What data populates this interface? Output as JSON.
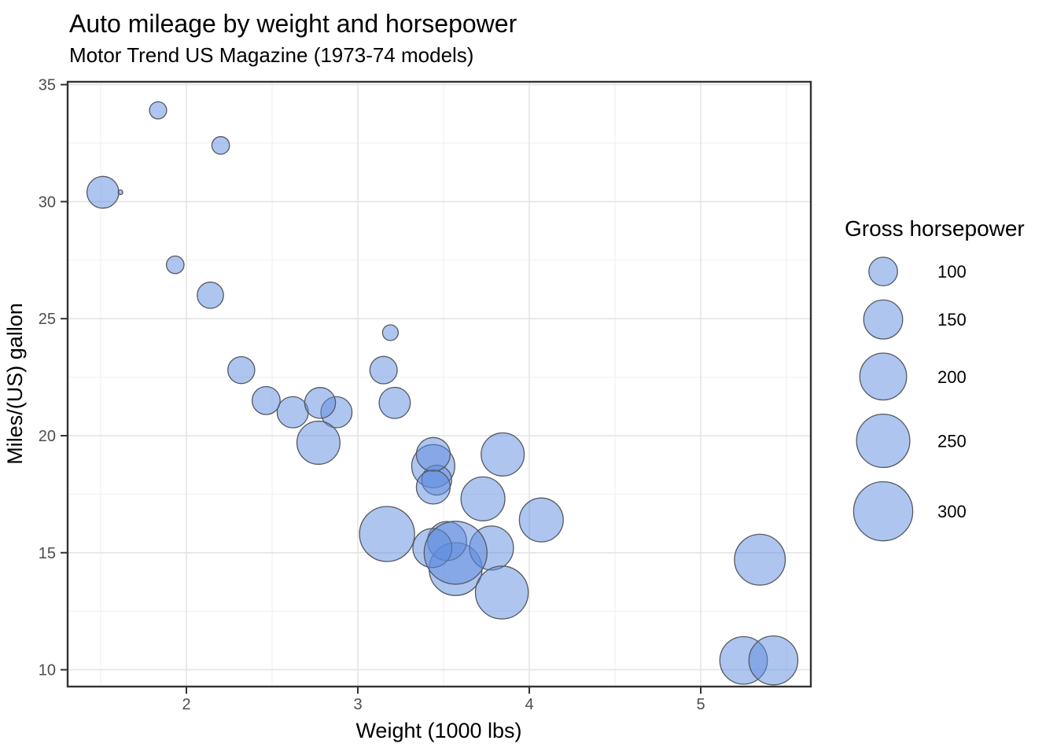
{
  "chart_data": {
    "type": "scatter",
    "title": "Auto mileage by weight and horsepower",
    "subtitle": "Motor Trend US Magazine (1973-74 models)",
    "xlabel": "Weight (1000 lbs)",
    "ylabel": "Miles/(US) gallon",
    "x_range": [
      1.3073,
      5.6422
    ],
    "y_range": [
      9.28,
      35.12
    ],
    "x_ticks_major": [
      2,
      3,
      4,
      5
    ],
    "x_ticks_minor": [
      1.5,
      2.5,
      3.5,
      4.5,
      5.5
    ],
    "y_ticks_major": [
      10,
      15,
      20,
      25,
      30,
      35
    ],
    "y_ticks_minor": [
      12.5,
      17.5,
      22.5,
      27.5,
      32.5
    ],
    "grid": "major+minor",
    "legend": {
      "title": "Gross horsepower",
      "entries": [
        100,
        150,
        200,
        250,
        300
      ],
      "position": "right"
    },
    "size_variable": "hp",
    "points": [
      {
        "wt": 2.62,
        "mpg": 21.0,
        "hp": 110
      },
      {
        "wt": 2.875,
        "mpg": 21.0,
        "hp": 110
      },
      {
        "wt": 2.32,
        "mpg": 22.8,
        "hp": 93
      },
      {
        "wt": 3.215,
        "mpg": 21.4,
        "hp": 110
      },
      {
        "wt": 3.44,
        "mpg": 18.7,
        "hp": 175
      },
      {
        "wt": 3.46,
        "mpg": 18.1,
        "hp": 105
      },
      {
        "wt": 3.57,
        "mpg": 14.3,
        "hp": 245
      },
      {
        "wt": 3.19,
        "mpg": 24.4,
        "hp": 62
      },
      {
        "wt": 3.15,
        "mpg": 22.8,
        "hp": 95
      },
      {
        "wt": 3.44,
        "mpg": 19.2,
        "hp": 123
      },
      {
        "wt": 3.44,
        "mpg": 17.8,
        "hp": 123
      },
      {
        "wt": 4.07,
        "mpg": 16.4,
        "hp": 180
      },
      {
        "wt": 3.73,
        "mpg": 17.3,
        "hp": 180
      },
      {
        "wt": 3.78,
        "mpg": 15.2,
        "hp": 180
      },
      {
        "wt": 5.25,
        "mpg": 10.4,
        "hp": 205
      },
      {
        "wt": 5.424,
        "mpg": 10.4,
        "hp": 215
      },
      {
        "wt": 5.345,
        "mpg": 14.7,
        "hp": 230
      },
      {
        "wt": 2.2,
        "mpg": 32.4,
        "hp": 66
      },
      {
        "wt": 1.615,
        "mpg": 30.4,
        "hp": 52
      },
      {
        "wt": 1.835,
        "mpg": 33.9,
        "hp": 65
      },
      {
        "wt": 2.465,
        "mpg": 21.5,
        "hp": 97
      },
      {
        "wt": 3.52,
        "mpg": 15.5,
        "hp": 150
      },
      {
        "wt": 3.435,
        "mpg": 15.2,
        "hp": 150
      },
      {
        "wt": 3.84,
        "mpg": 13.3,
        "hp": 245
      },
      {
        "wt": 3.845,
        "mpg": 19.2,
        "hp": 175
      },
      {
        "wt": 1.935,
        "mpg": 27.3,
        "hp": 66
      },
      {
        "wt": 2.14,
        "mpg": 26.0,
        "hp": 91
      },
      {
        "wt": 1.513,
        "mpg": 30.4,
        "hp": 113
      },
      {
        "wt": 3.17,
        "mpg": 15.8,
        "hp": 264
      },
      {
        "wt": 2.77,
        "mpg": 19.7,
        "hp": 175
      },
      {
        "wt": 3.57,
        "mpg": 15.0,
        "hp": 335
      },
      {
        "wt": 2.78,
        "mpg": 21.4,
        "hp": 109
      }
    ],
    "colors": {
      "bubble_fill": "rgba(93,139,224,0.5)",
      "bubble_stroke": "#545861",
      "grid_major": "#e4e4e4",
      "grid_minor": "#efefef",
      "panel_border": "#333333",
      "tick_label": "#4d4d4d",
      "text": "#000000",
      "background": "#ffffff"
    }
  }
}
